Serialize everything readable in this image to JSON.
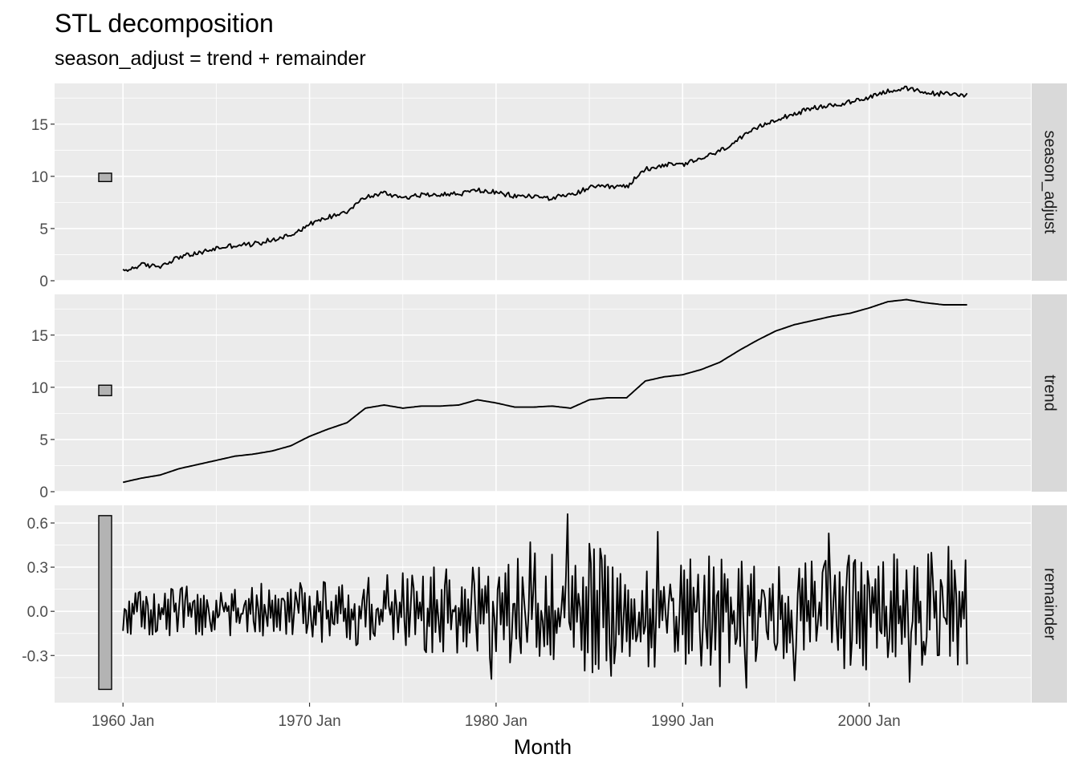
{
  "chart_data": {
    "type": "line",
    "title": "STL decomposition",
    "subtitle": "season_adjust = trend + remainder",
    "xlabel": "Month",
    "x_tick_labels": [
      "1960 Jan",
      "1970 Jan",
      "1980 Jan",
      "1990 Jan",
      "2000 Jan"
    ],
    "x_tick_years": [
      1960,
      1970,
      1980,
      1990,
      2000
    ],
    "xlim": [
      "1956-05",
      "2008-09"
    ],
    "x_data_start": "1960-01",
    "x_data_end": "2005-04",
    "grid": true,
    "panels": [
      {
        "strip": "season_adjust",
        "ylim": [
          0,
          18.9
        ],
        "yticks": [
          0,
          5,
          10,
          15
        ],
        "ytick_labels": [
          "0",
          "5",
          "10",
          "15"
        ],
        "scale_bar": [
          9.5,
          10.3
        ],
        "noise": 0.28,
        "points": [
          [
            "1960-01",
            0.9
          ],
          [
            "1961-01",
            1.5
          ],
          [
            "1962-01",
            1.4
          ],
          [
            "1963-01",
            2.3
          ],
          [
            "1964-01",
            2.6
          ],
          [
            "1965-01",
            3.1
          ],
          [
            "1966-01",
            3.4
          ],
          [
            "1967-01",
            3.5
          ],
          [
            "1968-01",
            3.9
          ],
          [
            "1969-01",
            4.4
          ],
          [
            "1970-01",
            5.4
          ],
          [
            "1971-01",
            6.1
          ],
          [
            "1972-01",
            6.7
          ],
          [
            "1973-01",
            8.0
          ],
          [
            "1974-01",
            8.4
          ],
          [
            "1975-01",
            8.0
          ],
          [
            "1976-01",
            8.2
          ],
          [
            "1977-01",
            8.3
          ],
          [
            "1978-01",
            8.3
          ],
          [
            "1979-01",
            8.7
          ],
          [
            "1980-01",
            8.4
          ],
          [
            "1981-01",
            8.1
          ],
          [
            "1982-01",
            8.1
          ],
          [
            "1983-01",
            7.9
          ],
          [
            "1984-01",
            8.2
          ],
          [
            "1985-01",
            8.9
          ],
          [
            "1986-01",
            9.0
          ],
          [
            "1987-01",
            9.0
          ],
          [
            "1988-01",
            10.7
          ],
          [
            "1989-01",
            11.1
          ],
          [
            "1990-01",
            11.1
          ],
          [
            "1991-01",
            11.7
          ],
          [
            "1992-01",
            12.4
          ],
          [
            "1993-01",
            13.5
          ],
          [
            "1994-01",
            14.6
          ],
          [
            "1995-01",
            15.5
          ],
          [
            "1996-01",
            16.0
          ],
          [
            "1997-01",
            16.5
          ],
          [
            "1998-01",
            16.8
          ],
          [
            "1999-01",
            17.1
          ],
          [
            "2000-01",
            17.6
          ],
          [
            "2001-01",
            18.2
          ],
          [
            "2002-01",
            18.4
          ],
          [
            "2003-01",
            18.0
          ],
          [
            "2004-01",
            17.9
          ],
          [
            "2005-04",
            17.8
          ]
        ]
      },
      {
        "strip": "trend",
        "ylim": [
          0,
          18.9
        ],
        "yticks": [
          0,
          5,
          10,
          15
        ],
        "ytick_labels": [
          "0",
          "5",
          "10",
          "15"
        ],
        "scale_bar": [
          9.2,
          10.2
        ],
        "noise": 0,
        "points": [
          [
            "1960-01",
            0.9
          ],
          [
            "1961-01",
            1.3
          ],
          [
            "1962-01",
            1.6
          ],
          [
            "1963-01",
            2.2
          ],
          [
            "1964-01",
            2.6
          ],
          [
            "1965-01",
            3.0
          ],
          [
            "1966-01",
            3.4
          ],
          [
            "1967-01",
            3.6
          ],
          [
            "1968-01",
            3.9
          ],
          [
            "1969-01",
            4.4
          ],
          [
            "1970-01",
            5.3
          ],
          [
            "1971-01",
            6.0
          ],
          [
            "1972-01",
            6.6
          ],
          [
            "1973-01",
            8.0
          ],
          [
            "1974-01",
            8.3
          ],
          [
            "1975-01",
            8.0
          ],
          [
            "1976-01",
            8.2
          ],
          [
            "1977-01",
            8.2
          ],
          [
            "1978-01",
            8.3
          ],
          [
            "1979-01",
            8.8
          ],
          [
            "1980-01",
            8.5
          ],
          [
            "1981-01",
            8.1
          ],
          [
            "1982-01",
            8.1
          ],
          [
            "1983-01",
            8.2
          ],
          [
            "1984-01",
            8.0
          ],
          [
            "1985-01",
            8.8
          ],
          [
            "1986-01",
            9.0
          ],
          [
            "1987-01",
            9.0
          ],
          [
            "1988-01",
            10.6
          ],
          [
            "1989-01",
            11.0
          ],
          [
            "1990-01",
            11.2
          ],
          [
            "1991-01",
            11.7
          ],
          [
            "1992-01",
            12.4
          ],
          [
            "1993-01",
            13.5
          ],
          [
            "1994-01",
            14.5
          ],
          [
            "1995-01",
            15.4
          ],
          [
            "1996-01",
            16.0
          ],
          [
            "1997-01",
            16.4
          ],
          [
            "1998-01",
            16.8
          ],
          [
            "1999-01",
            17.1
          ],
          [
            "2000-01",
            17.6
          ],
          [
            "2001-01",
            18.2
          ],
          [
            "2002-01",
            18.4
          ],
          [
            "2003-01",
            18.1
          ],
          [
            "2004-01",
            17.9
          ],
          [
            "2005-04",
            17.9
          ]
        ]
      },
      {
        "strip": "remainder",
        "ylim": [
          -0.62,
          0.72
        ],
        "yticks": [
          -0.3,
          0.0,
          0.3,
          0.6
        ],
        "ytick_labels": [
          "-0.3",
          "0.0",
          "0.3",
          "0.6"
        ],
        "scale_bar": [
          -0.53,
          0.65
        ],
        "noise": 0,
        "amplitude_by_year": [
          [
            1960,
            0.16
          ],
          [
            1970,
            0.2
          ],
          [
            1975,
            0.28
          ],
          [
            1980,
            0.34
          ],
          [
            1983,
            0.42
          ],
          [
            1987,
            0.45
          ],
          [
            1990,
            0.38
          ],
          [
            1995,
            0.38
          ],
          [
            2000,
            0.4
          ],
          [
            2005,
            0.4
          ]
        ],
        "extremes": [
          [
            "1983-11",
            0.66
          ],
          [
            "1988-09",
            0.54
          ],
          [
            "1985-01",
            0.46
          ],
          [
            "1981-11",
            0.47
          ],
          [
            "1979-10",
            -0.46
          ],
          [
            "1992-01",
            -0.51
          ],
          [
            "1993-06",
            -0.52
          ],
          [
            "1996-01",
            -0.47
          ],
          [
            "2002-03",
            -0.48
          ],
          [
            "1997-11",
            0.53
          ],
          [
            "2004-04",
            0.44
          ],
          [
            "2005-04",
            -0.36
          ]
        ]
      }
    ]
  }
}
